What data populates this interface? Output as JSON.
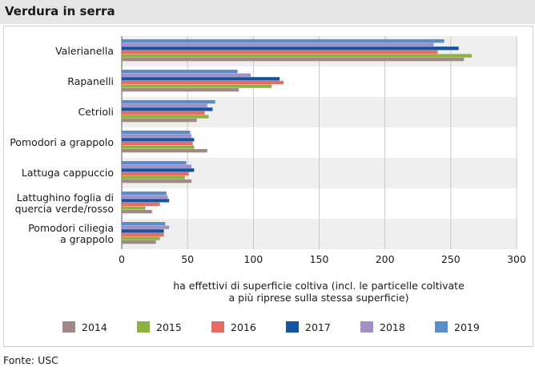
{
  "header": {
    "title": "Verdura in serra"
  },
  "footer": {
    "source": "Fonte: USC"
  },
  "chart_data": {
    "type": "bar",
    "orientation": "horizontal",
    "title": "Verdura in serra",
    "categories": [
      [
        "Valerianella"
      ],
      [
        "Rapanelli"
      ],
      [
        "Cetrioli"
      ],
      [
        "Pomodori a grappolo"
      ],
      [
        "Lattuga cappuccio"
      ],
      [
        "Lattughino foglia di",
        "quercia verde/rosso"
      ],
      [
        "Pomodori ciliegia",
        "a grappolo"
      ]
    ],
    "series": [
      {
        "name": "2014",
        "color": "#9e8a82",
        "values": [
          260,
          89,
          57,
          65,
          53,
          23,
          26
        ]
      },
      {
        "name": "2015",
        "color": "#8db23f",
        "values": [
          266,
          114,
          66,
          55,
          48,
          18,
          29
        ]
      },
      {
        "name": "2016",
        "color": "#ea6b61",
        "values": [
          240,
          123,
          63,
          54,
          51,
          29,
          32
        ]
      },
      {
        "name": "2017",
        "color": "#1552a2",
        "values": [
          256,
          120,
          69,
          55,
          55,
          36,
          32
        ]
      },
      {
        "name": "2018",
        "color": "#a48ec5",
        "values": [
          237,
          98,
          65,
          53,
          53,
          35,
          36
        ]
      },
      {
        "name": "2019",
        "color": "#5b8ec9",
        "values": [
          245,
          88,
          71,
          52,
          49,
          34,
          33
        ]
      }
    ],
    "xlim": [
      0,
      300
    ],
    "xticks": [
      "0",
      "50",
      "100",
      "150",
      "200",
      "250",
      "300"
    ],
    "xlabel": [
      "ha effettivi di superficie coltiva (incl. le particelle coltivate",
      "a più riprese sulla stessa superficie)"
    ],
    "ylabel": "",
    "grid": true,
    "legend_position": "bottom"
  }
}
